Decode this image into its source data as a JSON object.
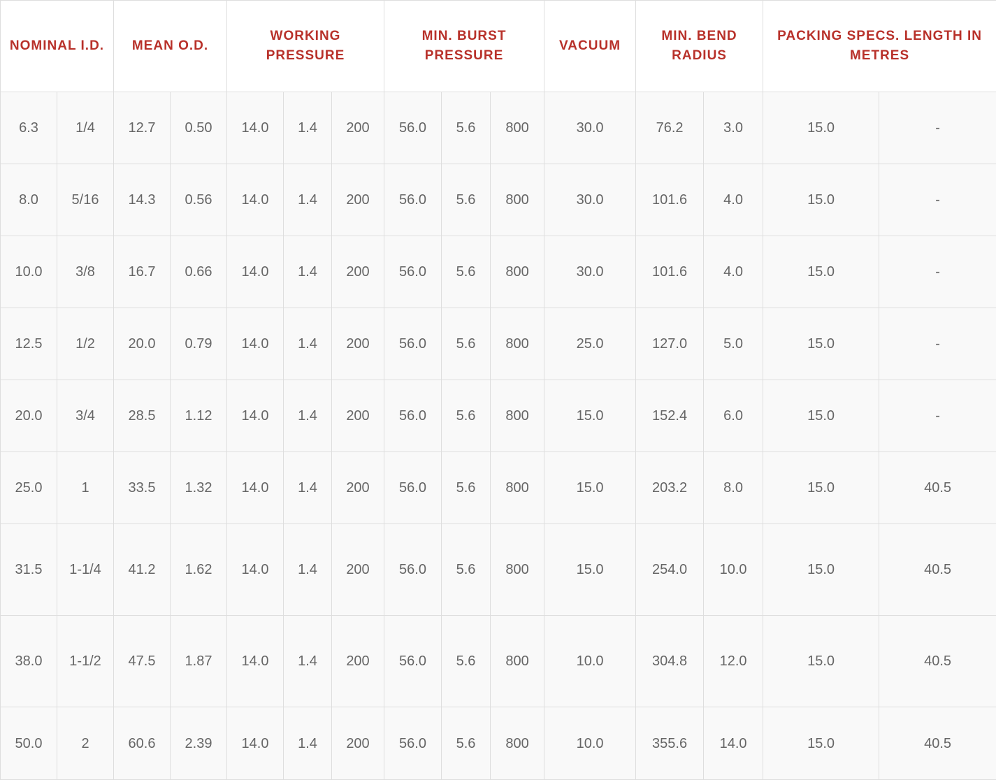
{
  "headers": [
    {
      "label": "NOMINAL I.D.",
      "colspan": 2
    },
    {
      "label": "MEAN O.D.",
      "colspan": 2
    },
    {
      "label": "WORKING PRESSURE",
      "colspan": 3
    },
    {
      "label": "MIN. BURST PRESSURE",
      "colspan": 3
    },
    {
      "label": "VACUUM",
      "colspan": 1
    },
    {
      "label": "MIN. BEND RADIUS",
      "colspan": 2
    },
    {
      "label": "PACKING SPECS. LENGTH IN METRES",
      "colspan": 2
    }
  ],
  "rows": [
    [
      "6.3",
      "1/4",
      "12.7",
      "0.50",
      "14.0",
      "1.4",
      "200",
      "56.0",
      "5.6",
      "800",
      "30.0",
      "76.2",
      "3.0",
      "15.0",
      "-"
    ],
    [
      "8.0",
      "5/16",
      "14.3",
      "0.56",
      "14.0",
      "1.4",
      "200",
      "56.0",
      "5.6",
      "800",
      "30.0",
      "101.6",
      "4.0",
      "15.0",
      "-"
    ],
    [
      "10.0",
      "3/8",
      "16.7",
      "0.66",
      "14.0",
      "1.4",
      "200",
      "56.0",
      "5.6",
      "800",
      "30.0",
      "101.6",
      "4.0",
      "15.0",
      "-"
    ],
    [
      "12.5",
      "1/2",
      "20.0",
      "0.79",
      "14.0",
      "1.4",
      "200",
      "56.0",
      "5.6",
      "800",
      "25.0",
      "127.0",
      "5.0",
      "15.0",
      "-"
    ],
    [
      "20.0",
      "3/4",
      "28.5",
      "1.12",
      "14.0",
      "1.4",
      "200",
      "56.0",
      "5.6",
      "800",
      "15.0",
      "152.4",
      "6.0",
      "15.0",
      "-"
    ],
    [
      "25.0",
      "1",
      "33.5",
      "1.32",
      "14.0",
      "1.4",
      "200",
      "56.0",
      "5.6",
      "800",
      "15.0",
      "203.2",
      "8.0",
      "15.0",
      "40.5"
    ],
    [
      "31.5",
      "1-1/4",
      "41.2",
      "1.62",
      "14.0",
      "1.4",
      "200",
      "56.0",
      "5.6",
      "800",
      "15.0",
      "254.0",
      "10.0",
      "15.0",
      "40.5"
    ],
    [
      "38.0",
      "1-1/2",
      "47.5",
      "1.87",
      "14.0",
      "1.4",
      "200",
      "56.0",
      "5.6",
      "800",
      "10.0",
      "304.8",
      "12.0",
      "15.0",
      "40.5"
    ],
    [
      "50.0",
      "2",
      "60.6",
      "2.39",
      "14.0",
      "1.4",
      "200",
      "56.0",
      "5.6",
      "800",
      "10.0",
      "355.6",
      "14.0",
      "15.0",
      "40.5"
    ]
  ],
  "colors": {
    "header_text": "#b8312a",
    "cell_text": "#666666",
    "border": "#dedede",
    "cell_background": "#f9f9f9"
  }
}
